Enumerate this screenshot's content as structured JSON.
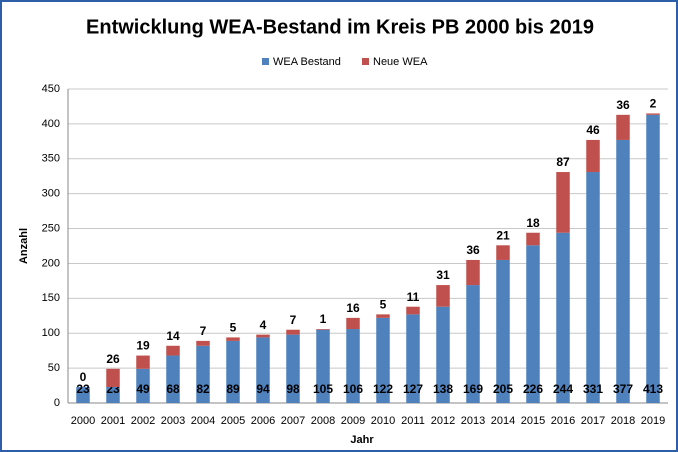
{
  "chart_data": {
    "type": "bar",
    "stacked": true,
    "title": "Entwicklung WEA-Bestand im Kreis PB 2000 bis 2019",
    "x_label": "Jahr",
    "y_label": "Anzahl",
    "categories": [
      "2000",
      "2001",
      "2002",
      "2003",
      "2004",
      "2005",
      "2006",
      "2007",
      "2008",
      "2009",
      "2010",
      "2011",
      "2012",
      "2013",
      "2014",
      "2015",
      "2016",
      "2017",
      "2018",
      "2019"
    ],
    "series": [
      {
        "name": "WEA Bestand",
        "color": "#4f81bd",
        "values": [
          23,
          23,
          49,
          68,
          82,
          89,
          94,
          98,
          105,
          106,
          122,
          127,
          138,
          169,
          205,
          226,
          244,
          331,
          377,
          413
        ]
      },
      {
        "name": "Neue WEA",
        "color": "#c0504d",
        "values": [
          0,
          26,
          19,
          14,
          7,
          5,
          4,
          7,
          1,
          16,
          5,
          11,
          31,
          36,
          21,
          18,
          87,
          46,
          36,
          2
        ]
      }
    ],
    "ylim": [
      0,
      450
    ],
    "yticks": [
      0,
      50,
      100,
      150,
      200,
      250,
      300,
      350,
      400,
      450
    ],
    "grid": true,
    "legend": "top"
  }
}
